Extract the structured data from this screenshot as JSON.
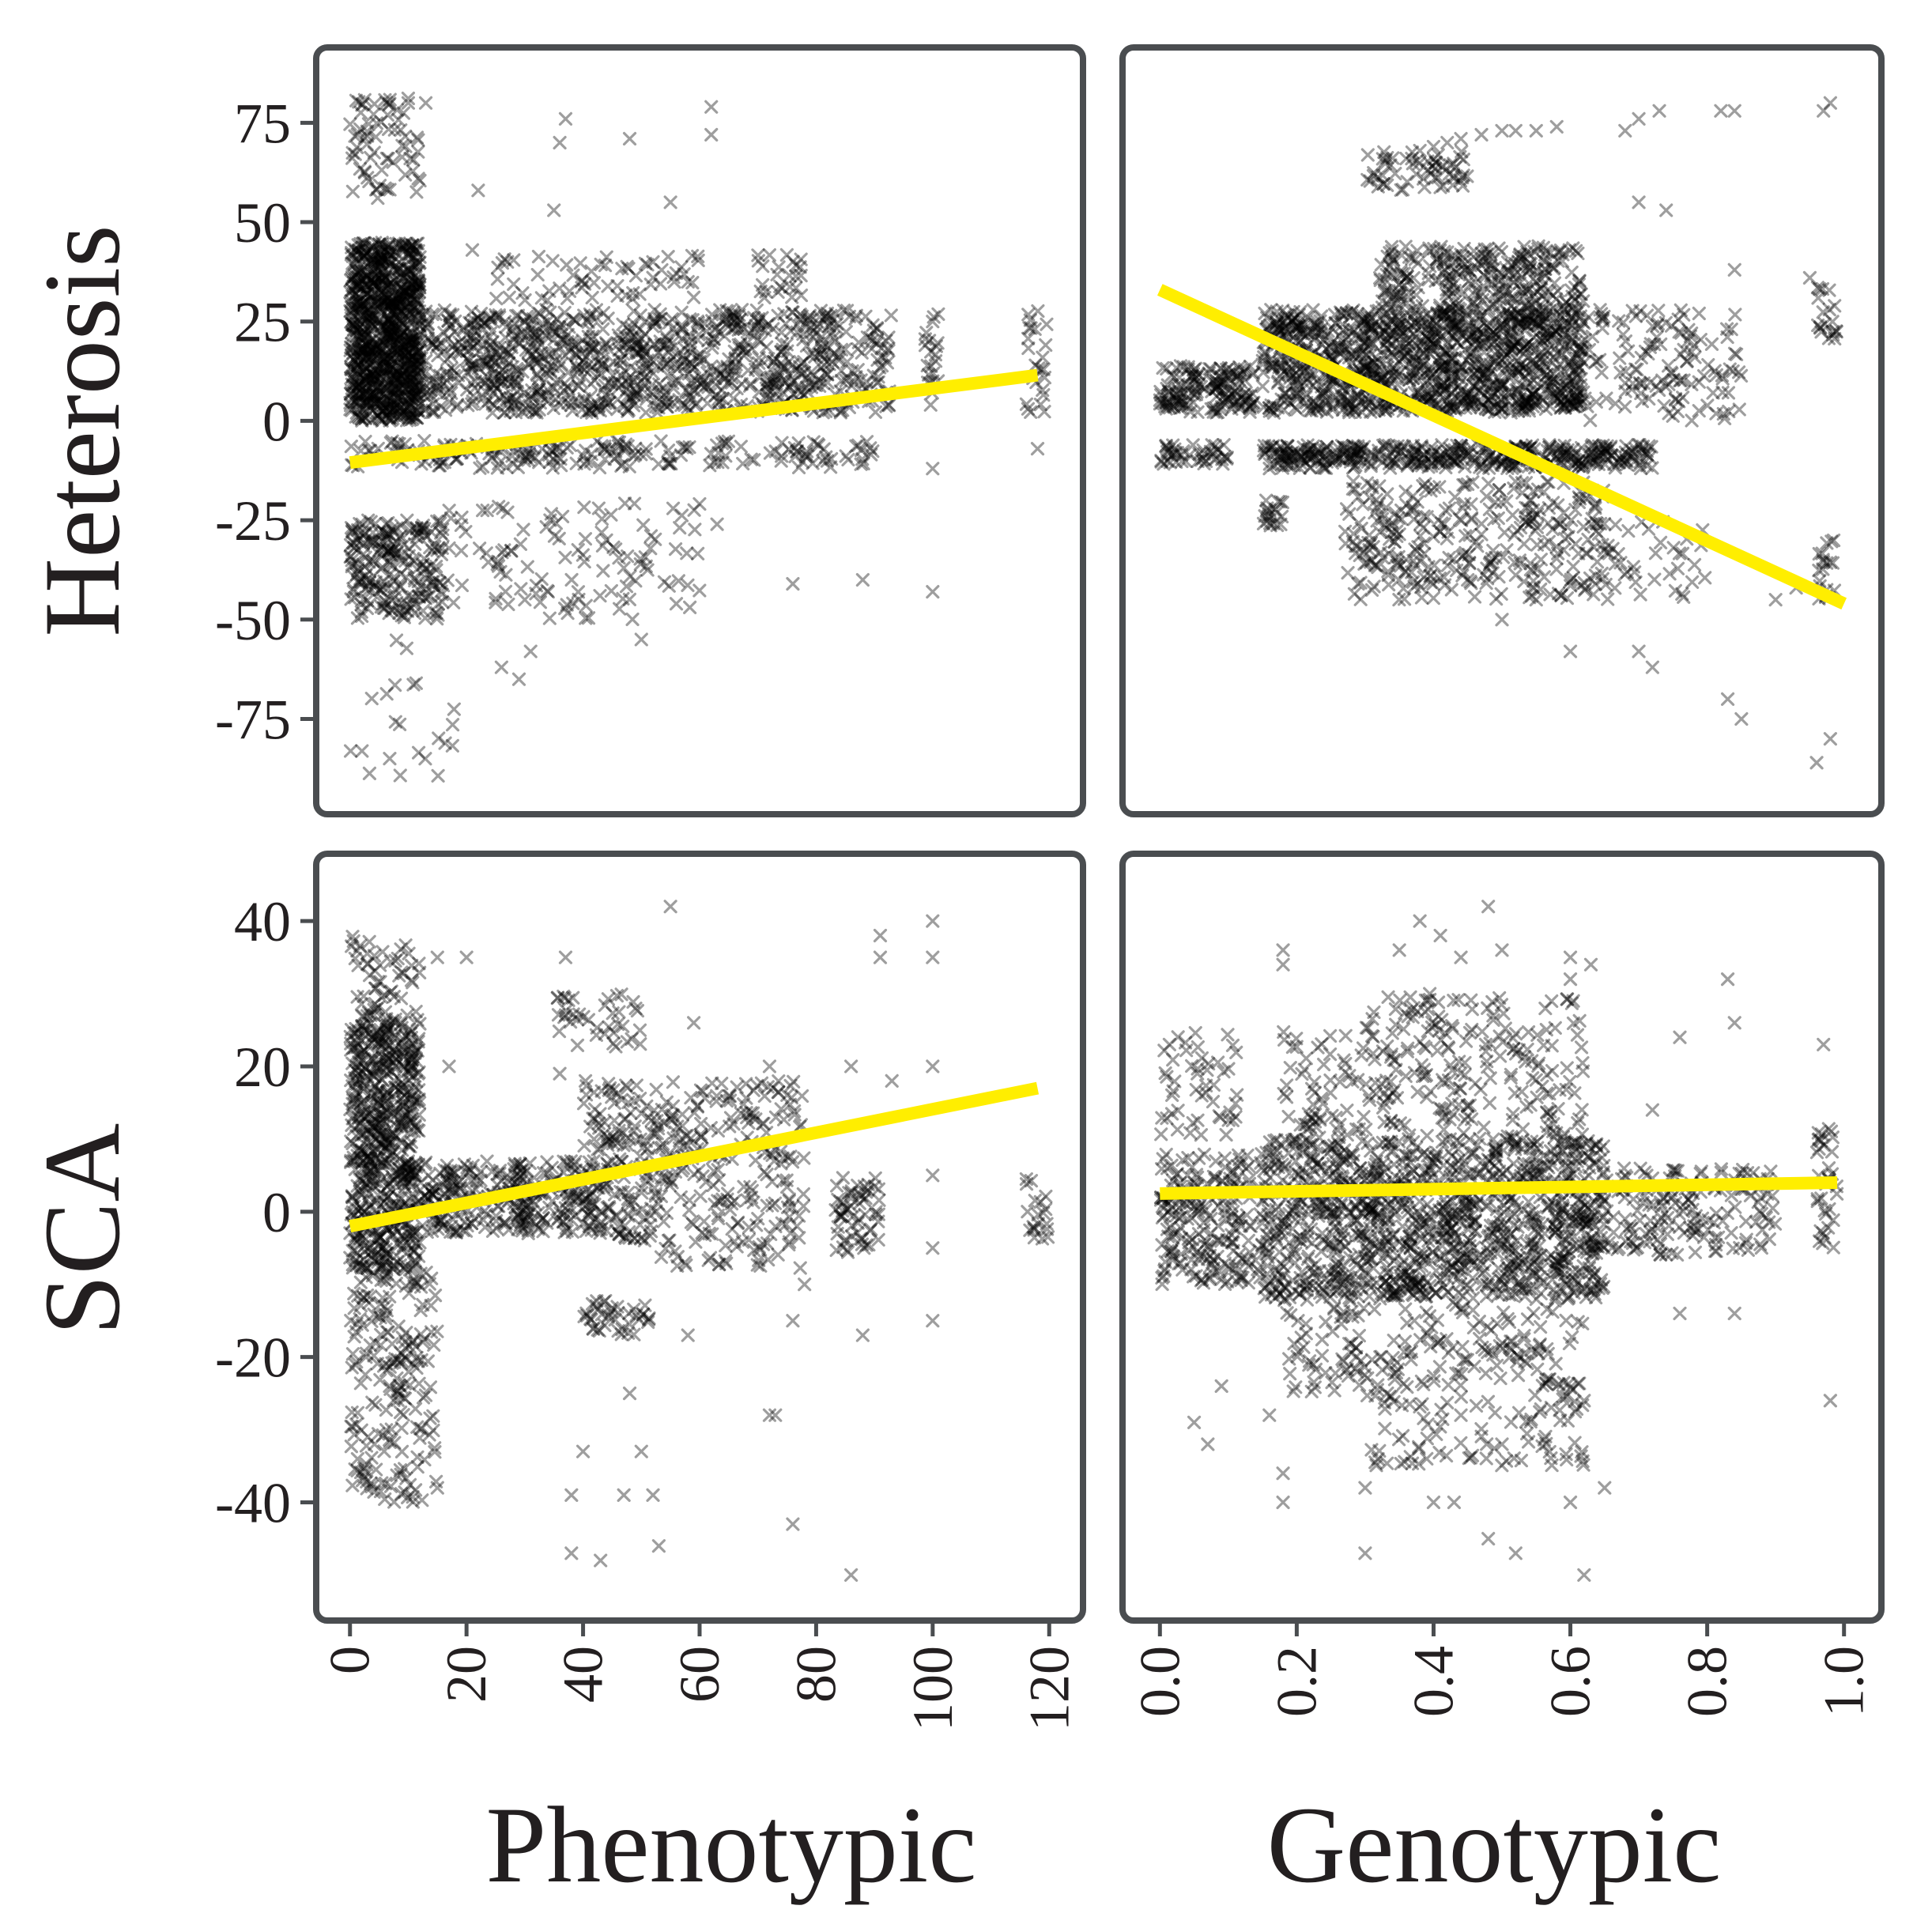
{
  "chart_data": {
    "type": "scatter",
    "layout": "2x2 facet grid",
    "marker": "x",
    "colors": {
      "points": "#000000",
      "trend": "#ffee00",
      "frame": "#4a4d50",
      "text": "#231f20"
    },
    "row_labels": [
      "Heterosis",
      "SCA"
    ],
    "column_labels": [
      "Phenotypic",
      "Genotypic"
    ],
    "x_axes": [
      {
        "name": "Phenotypic",
        "range": [
          -2,
          122
        ],
        "ticks": [
          0,
          20,
          40,
          60,
          80,
          100,
          120
        ],
        "tick_labels": [
          "0",
          "20",
          "40",
          "60",
          "80",
          "100",
          "120"
        ]
      },
      {
        "name": "Genotypic",
        "range": [
          -0.02,
          1.02
        ],
        "ticks": [
          0.0,
          0.2,
          0.4,
          0.6,
          0.8,
          1.0
        ],
        "tick_labels": [
          "0.0",
          "0.2",
          "0.4",
          "0.6",
          "0.8",
          "1.0"
        ]
      }
    ],
    "y_axes": [
      {
        "name": "Heterosis",
        "range": [
          -93,
          88
        ],
        "ticks": [
          75,
          50,
          25,
          0,
          -25,
          -50,
          -75
        ],
        "tick_labels": [
          "75",
          "50",
          "25",
          "0",
          "-25",
          "-50",
          "-75"
        ]
      },
      {
        "name": "SCA",
        "range": [
          -53,
          46
        ],
        "ticks": [
          40,
          20,
          0,
          -20,
          -40
        ],
        "tick_labels": [
          "40",
          "20",
          "0",
          "-20",
          "-40"
        ]
      }
    ],
    "panels": [
      {
        "id": "heterosis-phenotypic",
        "row": 0,
        "col": 0,
        "trend": {
          "x": [
            0,
            118
          ],
          "y": [
            -10.5,
            11.5
          ]
        },
        "clusters": [
          {
            "x": [
              0,
              12
            ],
            "y": [
              0,
              45
            ],
            "n": 1000
          },
          {
            "x": [
              12,
              82
            ],
            "y": [
              2,
              28
            ],
            "n": 900
          },
          {
            "x": [
              82,
              93
            ],
            "y": [
              2,
              28
            ],
            "n": 90
          },
          {
            "x": [
              98,
              101
            ],
            "y": [
              2,
              28
            ],
            "n": 20
          },
          {
            "x": [
              116,
              120
            ],
            "y": [
              2,
              28
            ],
            "n": 25
          },
          {
            "x": [
              0,
              16
            ],
            "y": [
              -50,
              -25
            ],
            "n": 230
          },
          {
            "x": [
              0,
              12
            ],
            "y": [
              55,
              82
            ],
            "n": 70
          },
          {
            "x": [
              0,
              90
            ],
            "y": [
              -12,
              -5
            ],
            "n": 200
          },
          {
            "x": [
              15,
              60
            ],
            "y": [
              -50,
              -20
            ],
            "n": 110
          },
          {
            "x": [
              25,
              60
            ],
            "y": [
              30,
              42
            ],
            "n": 60
          },
          {
            "x": [
              70,
              78
            ],
            "y": [
              30,
              42
            ],
            "n": 25
          },
          {
            "x": [
              0,
              18
            ],
            "y": [
              -90,
              -55
            ],
            "n": 22
          }
        ],
        "points": [
          [
            35,
            53
          ],
          [
            36,
            70
          ],
          [
            37,
            76
          ],
          [
            48,
            71
          ],
          [
            55,
            55
          ],
          [
            62,
            72
          ],
          [
            62,
            79
          ],
          [
            10,
            80
          ],
          [
            13,
            80
          ],
          [
            21,
            43
          ],
          [
            27,
            40
          ],
          [
            52,
            40
          ],
          [
            22,
            58
          ],
          [
            26,
            -62
          ],
          [
            31,
            -58
          ],
          [
            29,
            -65
          ],
          [
            34,
            -43
          ],
          [
            50,
            -55
          ],
          [
            56,
            -46
          ],
          [
            63,
            -26
          ],
          [
            76,
            -41
          ],
          [
            88,
            -40
          ],
          [
            100,
            -43
          ],
          [
            100,
            -12
          ],
          [
            118,
            -7
          ],
          [
            100,
            10
          ],
          [
            100,
            25
          ],
          [
            85,
            18
          ],
          [
            58,
            35
          ],
          [
            44,
            -30
          ],
          [
            47,
            -37
          ],
          [
            30,
            -45
          ]
        ]
      },
      {
        "id": "heterosis-genotypic",
        "row": 0,
        "col": 1,
        "trend": {
          "x": [
            0.0,
            1.0
          ],
          "y": [
            33,
            -46
          ]
        },
        "clusters": [
          {
            "x": [
              0.0,
              0.14
            ],
            "y": [
              2,
              14
            ],
            "n": 160
          },
          {
            "x": [
              0.15,
              0.62
            ],
            "y": [
              2,
              28
            ],
            "n": 1200
          },
          {
            "x": [
              0.32,
              0.62
            ],
            "y": [
              28,
              44
            ],
            "n": 280
          },
          {
            "x": [
              0.15,
              0.72
            ],
            "y": [
              -12,
              -6
            ],
            "n": 420
          },
          {
            "x": [
              0.0,
              0.1
            ],
            "y": [
              -11,
              -6
            ],
            "n": 45
          },
          {
            "x": [
              0.27,
              0.65
            ],
            "y": [
              -45,
              -15
            ],
            "n": 320
          },
          {
            "x": [
              0.62,
              0.85
            ],
            "y": [
              0,
              28
            ],
            "n": 130
          },
          {
            "x": [
              0.3,
              0.45
            ],
            "y": [
              58,
              68
            ],
            "n": 60
          },
          {
            "x": [
              0.15,
              0.18
            ],
            "y": [
              -27,
              -20
            ],
            "n": 20
          },
          {
            "x": [
              0.64,
              0.8
            ],
            "y": [
              -45,
              -25
            ],
            "n": 40
          },
          {
            "x": [
              0.96,
              0.99
            ],
            "y": [
              -45,
              -30
            ],
            "n": 20
          },
          {
            "x": [
              0.96,
              0.99
            ],
            "y": [
              20,
              35
            ],
            "n": 20
          }
        ],
        "points": [
          [
            0.36,
            66
          ],
          [
            0.38,
            68
          ],
          [
            0.4,
            69
          ],
          [
            0.42,
            70
          ],
          [
            0.44,
            71
          ],
          [
            0.47,
            72
          ],
          [
            0.5,
            73
          ],
          [
            0.52,
            73
          ],
          [
            0.55,
            73
          ],
          [
            0.58,
            74
          ],
          [
            0.68,
            73
          ],
          [
            0.7,
            76
          ],
          [
            0.73,
            78
          ],
          [
            0.82,
            78
          ],
          [
            0.84,
            78
          ],
          [
            0.98,
            80
          ],
          [
            0.97,
            78
          ],
          [
            0.98,
            -80
          ],
          [
            0.96,
            -86
          ],
          [
            0.85,
            -75
          ],
          [
            0.83,
            -70
          ],
          [
            0.7,
            -58
          ],
          [
            0.72,
            -62
          ],
          [
            0.6,
            -58
          ],
          [
            0.5,
            -50
          ],
          [
            0.95,
            36
          ],
          [
            0.84,
            38
          ],
          [
            0.7,
            55
          ],
          [
            0.74,
            53
          ],
          [
            0.9,
            -45
          ],
          [
            0.93,
            -42
          ],
          [
            0.45,
            -40
          ],
          [
            0.55,
            -45
          ]
        ]
      },
      {
        "id": "sca-phenotypic",
        "row": 1,
        "col": 0,
        "trend": {
          "x": [
            0,
            118
          ],
          "y": [
            -2,
            17
          ]
        },
        "clusters": [
          {
            "x": [
              0,
              12
            ],
            "y": [
              -8,
              26
            ],
            "n": 650
          },
          {
            "x": [
              0,
              15
            ],
            "y": [
              -40,
              -8
            ],
            "n": 200
          },
          {
            "x": [
              12,
              30
            ],
            "y": [
              -3,
              7
            ],
            "n": 160
          },
          {
            "x": [
              28,
              42
            ],
            "y": [
              -3,
              7
            ],
            "n": 130
          },
          {
            "x": [
              40,
              53
            ],
            "y": [
              -4,
              18
            ],
            "n": 170
          },
          {
            "x": [
              53,
              78
            ],
            "y": [
              -8,
              18
            ],
            "n": 230
          },
          {
            "x": [
              83,
              91
            ],
            "y": [
              -6,
              6
            ],
            "n": 60
          },
          {
            "x": [
              35,
              50
            ],
            "y": [
              22,
              30
            ],
            "n": 40
          },
          {
            "x": [
              0,
              12
            ],
            "y": [
              26,
              38
            ],
            "n": 60
          },
          {
            "x": [
              40,
              52
            ],
            "y": [
              -17,
              -12
            ],
            "n": 40
          },
          {
            "x": [
              116,
              120
            ],
            "y": [
              -4,
              6
            ],
            "n": 20
          }
        ],
        "points": [
          [
            55,
            42
          ],
          [
            15,
            35
          ],
          [
            20,
            35
          ],
          [
            17,
            20
          ],
          [
            37,
            35
          ],
          [
            36,
            19
          ],
          [
            59,
            26
          ],
          [
            91,
            35
          ],
          [
            91,
            38
          ],
          [
            100,
            40
          ],
          [
            100,
            35
          ],
          [
            100,
            20
          ],
          [
            100,
            5
          ],
          [
            100,
            -5
          ],
          [
            100,
            -15
          ],
          [
            93,
            18
          ],
          [
            86,
            20
          ],
          [
            72,
            20
          ],
          [
            73,
            -28
          ],
          [
            76,
            -15
          ],
          [
            48,
            -25
          ],
          [
            50,
            -33
          ],
          [
            40,
            -33
          ],
          [
            38,
            -39
          ],
          [
            38,
            -47
          ],
          [
            43,
            -48
          ],
          [
            47,
            -39
          ],
          [
            52,
            -39
          ],
          [
            53,
            -46
          ],
          [
            72,
            -28
          ],
          [
            76,
            -43
          ],
          [
            86,
            -50
          ],
          [
            15,
            -38
          ],
          [
            58,
            -17
          ],
          [
            88,
            -17
          ],
          [
            78,
            -10
          ]
        ]
      },
      {
        "id": "sca-genotypic",
        "row": 1,
        "col": 1,
        "trend": {
          "x": [
            0.0,
            0.99
          ],
          "y": [
            2.5,
            4
          ]
        },
        "clusters": [
          {
            "x": [
              0.0,
              0.15
            ],
            "y": [
              -10,
              8
            ],
            "n": 220
          },
          {
            "x": [
              0.15,
              0.65
            ],
            "y": [
              -12,
              10
            ],
            "n": 1200
          },
          {
            "x": [
              0.3,
              0.62
            ],
            "y": [
              10,
              30
            ],
            "n": 220
          },
          {
            "x": [
              0.3,
              0.62
            ],
            "y": [
              -35,
              -12
            ],
            "n": 220
          },
          {
            "x": [
              0.62,
              0.9
            ],
            "y": [
              -6,
              6
            ],
            "n": 180
          },
          {
            "x": [
              0.96,
              0.99
            ],
            "y": [
              -5,
              12
            ],
            "n": 35
          },
          {
            "x": [
              0.0,
              0.12
            ],
            "y": [
              10,
              25
            ],
            "n": 50
          },
          {
            "x": [
              0.18,
              0.3
            ],
            "y": [
              10,
              25
            ],
            "n": 60
          },
          {
            "x": [
              0.18,
              0.3
            ],
            "y": [
              -25,
              -12
            ],
            "n": 60
          }
        ],
        "points": [
          [
            0.48,
            42
          ],
          [
            0.38,
            40
          ],
          [
            0.41,
            38
          ],
          [
            0.35,
            36
          ],
          [
            0.44,
            35
          ],
          [
            0.5,
            36
          ],
          [
            0.18,
            36
          ],
          [
            0.18,
            34
          ],
          [
            0.6,
            35
          ],
          [
            0.63,
            34
          ],
          [
            0.6,
            32
          ],
          [
            0.83,
            32
          ],
          [
            0.84,
            26
          ],
          [
            0.97,
            23
          ],
          [
            0.76,
            24
          ],
          [
            0.72,
            14
          ],
          [
            0.98,
            -26
          ],
          [
            0.84,
            -14
          ],
          [
            0.76,
            -14
          ],
          [
            0.62,
            -50
          ],
          [
            0.65,
            -38
          ],
          [
            0.6,
            -40
          ],
          [
            0.52,
            -47
          ],
          [
            0.48,
            -45
          ],
          [
            0.4,
            -40
          ],
          [
            0.43,
            -40
          ],
          [
            0.3,
            -47
          ],
          [
            0.3,
            -38
          ],
          [
            0.18,
            -40
          ],
          [
            0.18,
            -36
          ],
          [
            0.16,
            -28
          ],
          [
            0.05,
            -29
          ],
          [
            0.07,
            -32
          ],
          [
            0.09,
            -24
          ],
          [
            0.62,
            -26
          ],
          [
            0.44,
            -28
          ],
          [
            0.5,
            -32
          ],
          [
            0.39,
            -34
          ]
        ]
      }
    ]
  }
}
